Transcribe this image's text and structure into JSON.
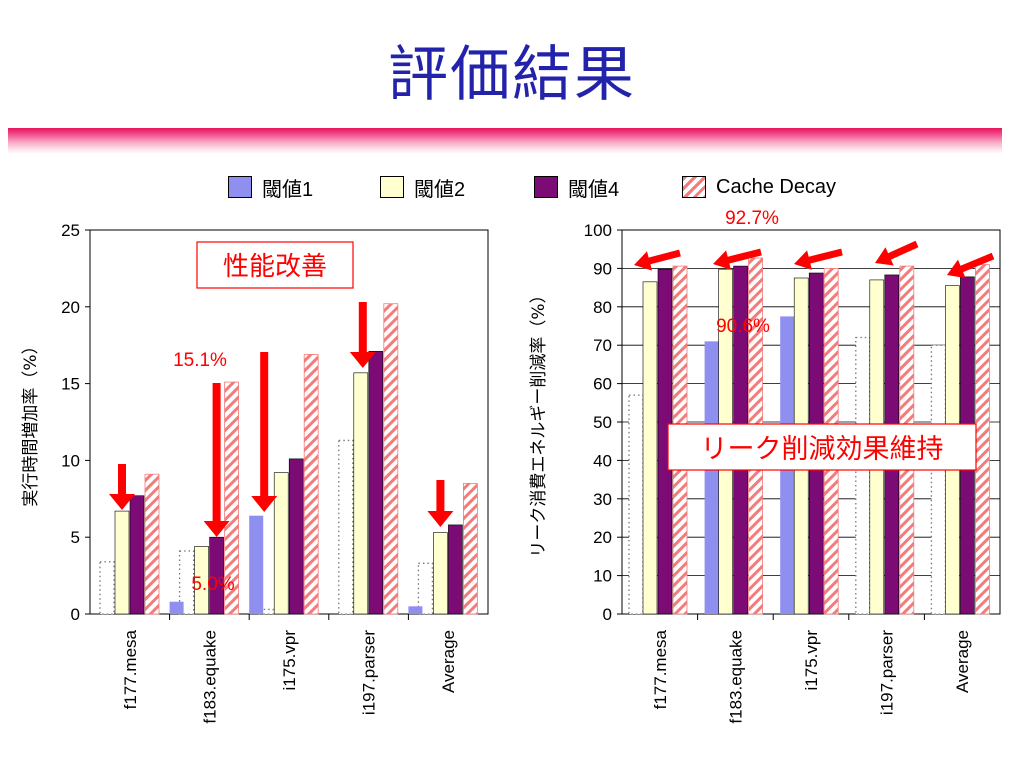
{
  "title": "評価結果",
  "legend": [
    "閾値1",
    "閾値2",
    "閾値4",
    "Cache Decay"
  ],
  "colors": {
    "title": "#2222aa",
    "band": "#e8145a",
    "threshold1": "#8f8ff0",
    "threshold2": "#ffffd0",
    "threshold4": "#7c0b76",
    "cache_decay_hatch": "#f27c7c",
    "annotation_red": "#ff0000"
  },
  "chart_data": [
    {
      "type": "bar",
      "categories": [
        "f177.mesa",
        "f183.equake",
        "i175.vpr",
        "i197.parser",
        "Average"
      ],
      "ylabel": "実行時間増加率（%）",
      "ylim": [
        0,
        25
      ],
      "yticks": [
        0,
        5,
        10,
        15,
        20,
        25
      ],
      "grid": false,
      "series": [
        {
          "values": [
            3.4,
            4.1,
            0.3,
            11.3,
            3.3
          ]
        },
        {
          "name": "閾値1",
          "values": [
            0,
            0.8,
            6.4,
            0,
            0.5
          ]
        },
        {
          "name": "閾値2",
          "values": [
            6.7,
            4.4,
            9.2,
            15.7,
            5.3
          ]
        },
        {
          "name": "閾値4",
          "values": [
            7.7,
            5.0,
            10.1,
            17.1,
            5.8
          ]
        },
        {
          "name": "Cache Decay",
          "values": [
            9.1,
            15.1,
            16.9,
            20.2,
            8.5
          ]
        }
      ],
      "annotations": {
        "box": "性能改善",
        "labels": [
          "15.1%",
          "5.0%"
        ]
      }
    },
    {
      "type": "bar",
      "categories": [
        "f177.mesa",
        "f183.equake",
        "i175.vpr",
        "i197.parser",
        "Average"
      ],
      "ylabel": "リーク消費エネルギー削減率（%）",
      "ylim": [
        0,
        100
      ],
      "yticks": [
        0,
        10,
        20,
        30,
        40,
        50,
        60,
        70,
        80,
        90,
        100
      ],
      "grid": true,
      "series": [
        {
          "values": [
            57,
            0,
            0,
            72,
            70
          ]
        },
        {
          "name": "閾値1",
          "values": [
            0,
            71,
            77.5,
            0,
            0
          ]
        },
        {
          "name": "閾値2",
          "values": [
            86.5,
            89.8,
            87.5,
            87,
            85.5
          ]
        },
        {
          "name": "閾値4",
          "values": [
            89.8,
            90.6,
            88.8,
            88.3,
            87.8
          ]
        },
        {
          "name": "Cache Decay",
          "values": [
            90.6,
            92.7,
            90,
            90.6,
            91
          ]
        }
      ],
      "annotations": {
        "box": "リーク削減効果維持",
        "labels": [
          "92.7%",
          "90.6%"
        ]
      }
    }
  ]
}
